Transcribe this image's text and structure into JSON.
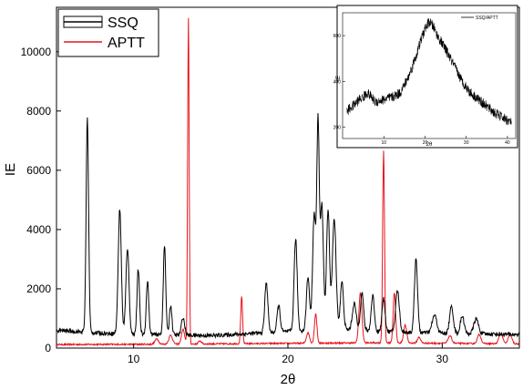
{
  "chart_data": [
    {
      "type": "line",
      "xlabel": "2θ",
      "ylabel": "IE",
      "xlim": [
        5,
        35
      ],
      "ylim": [
        0,
        11500
      ],
      "x_ticks": [
        10,
        20,
        30
      ],
      "y_ticks": [
        0,
        2000,
        4000,
        6000,
        8000,
        10000
      ],
      "legend": {
        "position": "top-left",
        "entries": [
          "SSQ",
          "APTT"
        ]
      },
      "series": [
        {
          "name": "SSQ",
          "color": "#000000",
          "baseline": [
            [
              5,
              600
            ],
            [
              8,
              500
            ],
            [
              12,
              450
            ],
            [
              15,
              420
            ],
            [
              18,
              500
            ],
            [
              20,
              560
            ],
            [
              23,
              650
            ],
            [
              26,
              560
            ],
            [
              30,
              500
            ],
            [
              35,
              460
            ]
          ],
          "peaks": [
            [
              7.0,
              7200,
              0.08
            ],
            [
              9.1,
              4200,
              0.1
            ],
            [
              9.6,
              2900,
              0.1
            ],
            [
              10.3,
              2200,
              0.08
            ],
            [
              10.9,
              1800,
              0.08
            ],
            [
              12.0,
              3000,
              0.08
            ],
            [
              12.4,
              1000,
              0.08
            ],
            [
              13.2,
              600,
              0.1
            ],
            [
              18.6,
              1700,
              0.1
            ],
            [
              19.4,
              900,
              0.1
            ],
            [
              20.5,
              3100,
              0.1
            ],
            [
              21.3,
              1800,
              0.1
            ],
            [
              21.7,
              3900,
              0.1
            ],
            [
              21.95,
              6900,
              0.08
            ],
            [
              22.2,
              4200,
              0.1
            ],
            [
              22.6,
              4000,
              0.1
            ],
            [
              23.0,
              3700,
              0.12
            ],
            [
              23.5,
              1600,
              0.1
            ],
            [
              24.3,
              900,
              0.12
            ],
            [
              24.8,
              1300,
              0.1
            ],
            [
              25.5,
              1200,
              0.1
            ],
            [
              26.2,
              1100,
              0.1
            ],
            [
              27.1,
              1400,
              0.12
            ],
            [
              28.3,
              2500,
              0.1
            ],
            [
              29.5,
              600,
              0.15
            ],
            [
              30.6,
              900,
              0.12
            ],
            [
              31.3,
              600,
              0.12
            ],
            [
              32.2,
              500,
              0.15
            ]
          ]
        },
        {
          "name": "APTT",
          "color": "#e8141c",
          "baseline": [
            [
              5,
              120
            ],
            [
              12,
              130
            ],
            [
              20,
              160
            ],
            [
              26,
              180
            ],
            [
              35,
              140
            ]
          ],
          "peaks": [
            [
              11.5,
              180,
              0.12
            ],
            [
              12.4,
              300,
              0.12
            ],
            [
              13.2,
              500,
              0.1
            ],
            [
              13.55,
              11000,
              0.05
            ],
            [
              14.3,
              100,
              0.1
            ],
            [
              17.0,
              1600,
              0.06
            ],
            [
              21.3,
              350,
              0.1
            ],
            [
              21.8,
              1000,
              0.08
            ],
            [
              24.7,
              1700,
              0.1
            ],
            [
              26.2,
              6500,
              0.06
            ],
            [
              26.9,
              1700,
              0.08
            ],
            [
              27.6,
              600,
              0.1
            ],
            [
              28.5,
              200,
              0.1
            ],
            [
              30.5,
              250,
              0.12
            ],
            [
              32.4,
              300,
              0.12
            ],
            [
              33.8,
              350,
              0.12
            ],
            [
              34.4,
              300,
              0.12
            ]
          ]
        }
      ]
    },
    {
      "type": "line",
      "role": "inset",
      "xlabel": "2θ",
      "ylabel": "IE",
      "xlim": [
        0,
        42
      ],
      "ylim": [
        150,
        700
      ],
      "x_ticks": [
        10,
        20,
        30,
        40
      ],
      "y_ticks": [
        200,
        400,
        600
      ],
      "legend": {
        "position": "top-right",
        "entries": [
          "SSQ/APTT"
        ]
      },
      "series": [
        {
          "name": "SSQ/APTT",
          "color": "#000000",
          "points": [
            [
              1,
              270
            ],
            [
              3,
              300
            ],
            [
              4,
              320
            ],
            [
              5,
              330
            ],
            [
              6,
              350
            ],
            [
              7,
              330
            ],
            [
              8,
              310
            ],
            [
              10,
              320
            ],
            [
              12,
              330
            ],
            [
              14,
              350
            ],
            [
              16,
              420
            ],
            [
              18,
              520
            ],
            [
              19,
              580
            ],
            [
              20,
              630
            ],
            [
              21,
              660
            ],
            [
              22,
              640
            ],
            [
              23,
              600
            ],
            [
              25,
              540
            ],
            [
              27,
              470
            ],
            [
              29,
              400
            ],
            [
              31,
              350
            ],
            [
              33,
              320
            ],
            [
              35,
              290
            ],
            [
              37,
              260
            ],
            [
              39,
              240
            ],
            [
              41,
              220
            ]
          ]
        }
      ]
    }
  ]
}
